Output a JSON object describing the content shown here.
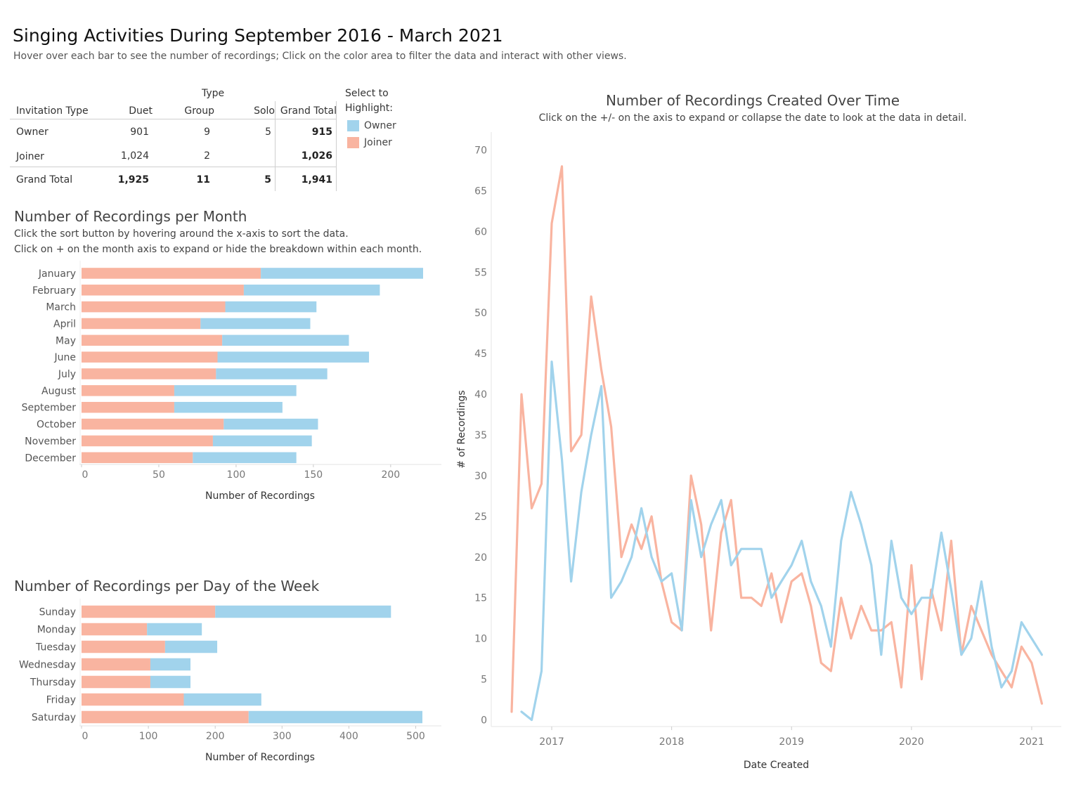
{
  "dashboard": {
    "title": "Singing Activities During September 2016 - March 2021",
    "subtitle": "Hover over each bar to see the number of recordings; Click on the color area to filter the data and interact with other views."
  },
  "colors": {
    "owner": "#a1d3ec",
    "joiner": "#f9b4a0"
  },
  "summary_table": {
    "group_header": "Type",
    "columns": [
      "Invitation Type",
      "Duet",
      "Group",
      "Solo",
      "Grand Total"
    ],
    "rows": [
      {
        "label": "Owner",
        "duet": "901",
        "group": "9",
        "solo": "5",
        "total": "915"
      },
      {
        "label": "Joiner",
        "duet": "1,024",
        "group": "2",
        "solo": "",
        "total": "1,026"
      },
      {
        "label": "Grand Total",
        "duet": "1,925",
        "group": "11",
        "solo": "5",
        "total": "1,941"
      }
    ]
  },
  "legend": {
    "title_line1": "Select to",
    "title_line2": "Highlight:",
    "items": [
      {
        "label": "Owner",
        "color": "#a1d3ec"
      },
      {
        "label": "Joiner",
        "color": "#f9b4a0"
      }
    ]
  },
  "month_panel": {
    "title": "Number of Recordings per Month",
    "note1": "Click the sort button by hovering around the x-axis to sort the data.",
    "note2": "Click on + on the month axis to expand or hide the breakdown within each month."
  },
  "weekday_panel": {
    "title": "Number of Recordings per Day of the Week"
  },
  "time_panel": {
    "title": "Number of Recordings Created Over Time",
    "note": "Click on the +/-  on the axis to expand or collapse the date to look at the data in detail."
  },
  "chart_data": [
    {
      "type": "bar",
      "orientation": "horizontal",
      "stacked": true,
      "title": "Number of Recordings per Month",
      "xlabel": "Number of Recordings",
      "xlim": [
        0,
        230
      ],
      "xticks": [
        0,
        50,
        100,
        150,
        200
      ],
      "categories": [
        "January",
        "February",
        "March",
        "April",
        "May",
        "June",
        "July",
        "August",
        "September",
        "October",
        "November",
        "December"
      ],
      "series": [
        {
          "name": "Joiner",
          "color": "#f9b4a0",
          "values": [
            116,
            105,
            93,
            77,
            91,
            88,
            87,
            60,
            60,
            92,
            85,
            72
          ]
        },
        {
          "name": "Owner",
          "color": "#a1d3ec",
          "values": [
            105,
            88,
            59,
            71,
            82,
            98,
            72,
            79,
            70,
            61,
            64,
            67
          ]
        }
      ]
    },
    {
      "type": "bar",
      "orientation": "horizontal",
      "stacked": true,
      "title": "Number of Recordings per Day of the Week",
      "xlabel": "Number of Recordings",
      "xlim": [
        0,
        530
      ],
      "xticks": [
        0,
        100,
        200,
        300,
        400,
        500
      ],
      "categories": [
        "Sunday",
        "Monday",
        "Tuesday",
        "Wednesday",
        "Thursday",
        "Friday",
        "Saturday"
      ],
      "series": [
        {
          "name": "Joiner",
          "color": "#f9b4a0",
          "values": [
            200,
            98,
            125,
            103,
            103,
            153,
            250
          ]
        },
        {
          "name": "Owner",
          "color": "#a1d3ec",
          "values": [
            263,
            82,
            78,
            60,
            60,
            116,
            260
          ]
        }
      ]
    },
    {
      "type": "line",
      "title": "Number of Recordings Created Over Time",
      "xlabel": "Date Created",
      "ylabel": "# of Recordings",
      "ylim": [
        0,
        70
      ],
      "yticks": [
        0,
        5,
        10,
        15,
        20,
        25,
        30,
        35,
        40,
        45,
        50,
        55,
        60,
        65,
        70
      ],
      "xticks": [
        "2017",
        "2018",
        "2019",
        "2020",
        "2021"
      ],
      "xlim": [
        "2016-07-01",
        "2021-04-01"
      ],
      "series": [
        {
          "name": "Joiner",
          "color": "#f9b4a0",
          "x": [
            "2016-09",
            "2016-10",
            "2016-11",
            "2016-12",
            "2017-01",
            "2017-02",
            "2017-03",
            "2017-04",
            "2017-05",
            "2017-06",
            "2017-07",
            "2017-08",
            "2017-09",
            "2017-10",
            "2017-11",
            "2017-12",
            "2018-01",
            "2018-02",
            "2018-03",
            "2018-04",
            "2018-05",
            "2018-06",
            "2018-07",
            "2018-08",
            "2018-09",
            "2018-10",
            "2018-11",
            "2018-12",
            "2019-01",
            "2019-02",
            "2019-03",
            "2019-04",
            "2019-05",
            "2019-06",
            "2019-07",
            "2019-08",
            "2019-09",
            "2019-10",
            "2019-11",
            "2019-12",
            "2020-01",
            "2020-02",
            "2020-03",
            "2020-04",
            "2020-05",
            "2020-06",
            "2020-07",
            "2020-08",
            "2020-09",
            "2020-10",
            "2020-11",
            "2020-12",
            "2021-01",
            "2021-02"
          ],
          "y": [
            1,
            40,
            26,
            29,
            61,
            68,
            33,
            35,
            52,
            43,
            36,
            20,
            24,
            21,
            25,
            17,
            12,
            11,
            30,
            24,
            11,
            23,
            27,
            15,
            15,
            14,
            18,
            12,
            17,
            18,
            14,
            7,
            6,
            15,
            10,
            14,
            11,
            11,
            12,
            4,
            19,
            5,
            16,
            11,
            22,
            8,
            14,
            11,
            8,
            6,
            4,
            9,
            7,
            2
          ]
        },
        {
          "name": "Owner",
          "color": "#a1d3ec",
          "x": [
            "2016-10",
            "2016-11",
            "2016-12",
            "2017-01",
            "2017-02",
            "2017-03",
            "2017-04",
            "2017-05",
            "2017-06",
            "2017-07",
            "2017-08",
            "2017-09",
            "2017-10",
            "2017-11",
            "2017-12",
            "2018-01",
            "2018-02",
            "2018-03",
            "2018-04",
            "2018-05",
            "2018-06",
            "2018-07",
            "2018-08",
            "2018-09",
            "2018-10",
            "2018-11",
            "2018-12",
            "2019-01",
            "2019-02",
            "2019-03",
            "2019-04",
            "2019-05",
            "2019-06",
            "2019-07",
            "2019-08",
            "2019-09",
            "2019-10",
            "2019-11",
            "2019-12",
            "2020-01",
            "2020-02",
            "2020-03",
            "2020-04",
            "2020-05",
            "2020-06",
            "2020-07",
            "2020-08",
            "2020-09",
            "2020-10",
            "2020-11",
            "2020-12",
            "2021-01",
            "2021-02"
          ],
          "y": [
            1,
            0,
            6,
            44,
            32,
            17,
            28,
            35,
            41,
            15,
            17,
            20,
            26,
            20,
            17,
            18,
            11,
            27,
            20,
            24,
            27,
            19,
            21,
            21,
            21,
            15,
            17,
            19,
            22,
            17,
            14,
            9,
            22,
            28,
            24,
            19,
            8,
            22,
            15,
            13,
            15,
            15,
            23,
            16,
            8,
            10,
            17,
            9,
            4,
            6,
            12,
            10,
            8
          ]
        }
      ]
    }
  ]
}
